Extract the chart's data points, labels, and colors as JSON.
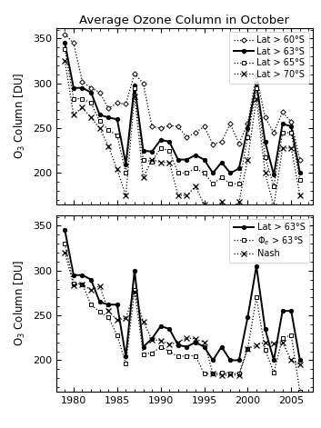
{
  "title": "Average Ozone Column in October",
  "years": [
    1979,
    1980,
    1981,
    1982,
    1983,
    1984,
    1985,
    1986,
    1987,
    1988,
    1989,
    1990,
    1991,
    1992,
    1993,
    1994,
    1995,
    1996,
    1997,
    1998,
    1999,
    2000,
    2001,
    2002,
    2003,
    2004,
    2005,
    2006
  ],
  "top_60S": [
    355,
    345,
    302,
    295,
    290,
    272,
    278,
    277,
    311,
    300,
    252,
    250,
    253,
    252,
    240,
    245,
    252,
    232,
    235,
    255,
    233,
    255,
    309,
    262,
    245,
    268,
    257,
    215
  ],
  "top_63S": [
    345,
    295,
    295,
    290,
    265,
    262,
    260,
    210,
    298,
    225,
    224,
    237,
    235,
    215,
    215,
    220,
    215,
    200,
    212,
    200,
    205,
    250,
    300,
    235,
    198,
    255,
    252,
    200
  ],
  "top_65S": [
    338,
    283,
    283,
    278,
    258,
    248,
    242,
    200,
    295,
    215,
    213,
    228,
    225,
    200,
    200,
    205,
    200,
    188,
    195,
    188,
    188,
    240,
    295,
    218,
    185,
    245,
    245,
    192
  ],
  "top_70S": [
    325,
    265,
    273,
    262,
    250,
    230,
    204,
    175,
    286,
    195,
    215,
    212,
    212,
    175,
    175,
    185,
    165,
    160,
    168,
    160,
    168,
    215,
    283,
    200,
    163,
    228,
    228,
    175
  ],
  "bot_63S": [
    345,
    295,
    295,
    290,
    265,
    262,
    262,
    204,
    300,
    215,
    224,
    238,
    235,
    217,
    215,
    220,
    215,
    200,
    215,
    200,
    200,
    248,
    305,
    235,
    200,
    255,
    255,
    200
  ],
  "bot_phi63S": [
    330,
    286,
    285,
    262,
    254,
    248,
    228,
    196,
    278,
    207,
    208,
    215,
    210,
    204,
    205,
    205,
    185,
    185,
    186,
    185,
    185,
    213,
    270,
    212,
    186,
    225,
    228,
    165
  ],
  "bot_nash": [
    320,
    284,
    285,
    278,
    283,
    255,
    245,
    247,
    276,
    243,
    223,
    222,
    218,
    220,
    225,
    224,
    220,
    185,
    183,
    184,
    183,
    213,
    217,
    220,
    219,
    220,
    200,
    195
  ],
  "ylabel": "O$_3$ Column [DU]",
  "ylim": [
    165,
    362
  ],
  "yticks": [
    200,
    250,
    300,
    350
  ],
  "legend_top": [
    "Lat > 60°S",
    "Lat > 63°S",
    "Lat > 65°S",
    "Lat > 70°S"
  ],
  "legend_bot": [
    "Lat > 63°S",
    "Φ$_e$ > 63°S",
    "Nash"
  ]
}
